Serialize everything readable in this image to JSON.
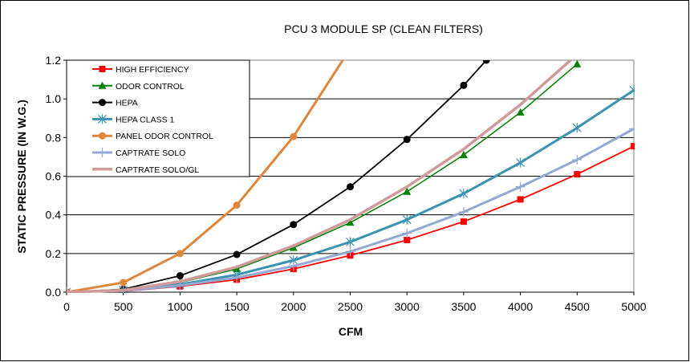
{
  "chart_data": {
    "type": "line",
    "title": "PCU 3 MODULE SP (CLEAN FILTERS)",
    "xlabel": "CFM",
    "ylabel": "STATIC PRESSURE (IN W.G.)",
    "xlim": [
      0,
      5000
    ],
    "ylim": [
      0,
      1.2
    ],
    "xticks": [
      "0",
      "500",
      "1000",
      "1500",
      "2000",
      "2500",
      "3000",
      "3500",
      "4000",
      "4500",
      "5000"
    ],
    "yticks": [
      "0.0",
      "0.2",
      "0.4",
      "0.6",
      "0.8",
      "1.0",
      "1.2"
    ],
    "grid": "horizontal",
    "legend_placement": "top-left",
    "series": [
      {
        "name": "HIGH EFFICIENCY",
        "color": "#ff0000",
        "marker": "square",
        "x": [
          0,
          500,
          1000,
          1500,
          2000,
          2500,
          3000,
          3500,
          4000,
          4500,
          5000
        ],
        "y": [
          0,
          0.005,
          0.03,
          0.065,
          0.12,
          0.19,
          0.27,
          0.365,
          0.48,
          0.61,
          0.755
        ]
      },
      {
        "name": "ODOR CONTROL",
        "color": "#008000",
        "marker": "triangle",
        "x": [
          0,
          500,
          1000,
          1500,
          2000,
          2500,
          3000,
          3500,
          4000,
          4500
        ],
        "y": [
          0,
          0.01,
          0.05,
          0.12,
          0.23,
          0.36,
          0.52,
          0.71,
          0.93,
          1.18
        ]
      },
      {
        "name": "HEPA",
        "color": "#000000",
        "marker": "circle",
        "x": [
          0,
          500,
          1000,
          1500,
          2000,
          2500,
          3000,
          3500,
          3700
        ],
        "y": [
          0,
          0.015,
          0.085,
          0.195,
          0.35,
          0.545,
          0.79,
          1.07,
          1.2
        ]
      },
      {
        "name": "HEPA CLASS 1",
        "color": "#3a93b0",
        "marker": "star",
        "x": [
          0,
          500,
          1000,
          1500,
          2000,
          2500,
          3000,
          3500,
          4000,
          4500,
          5000
        ],
        "y": [
          0,
          0.01,
          0.04,
          0.09,
          0.165,
          0.26,
          0.375,
          0.51,
          0.67,
          0.85,
          1.045
        ]
      },
      {
        "name": "PANEL ODOR CONTROL",
        "color": "#e0853a",
        "marker": "circle",
        "x": [
          0,
          500,
          1000,
          1500,
          2000,
          2500
        ],
        "y": [
          0,
          0.05,
          0.2,
          0.45,
          0.805,
          1.26
        ]
      },
      {
        "name": "CAPTRATE SOLO",
        "color": "#94a8d4",
        "marker": "plus",
        "x": [
          0,
          500,
          1000,
          1500,
          2000,
          2500,
          3000,
          3500,
          4000,
          4500,
          5000
        ],
        "y": [
          0,
          0.008,
          0.035,
          0.075,
          0.135,
          0.21,
          0.305,
          0.415,
          0.545,
          0.685,
          0.845
        ]
      },
      {
        "name": "CAPTRATE SOLO/GL",
        "color": "#d09a9a",
        "marker": "none",
        "x": [
          0,
          500,
          1000,
          1500,
          2000,
          2500,
          3000,
          3500,
          4000,
          4500
        ],
        "y": [
          0,
          0.01,
          0.055,
          0.13,
          0.24,
          0.375,
          0.545,
          0.74,
          0.97,
          1.23
        ]
      }
    ]
  }
}
